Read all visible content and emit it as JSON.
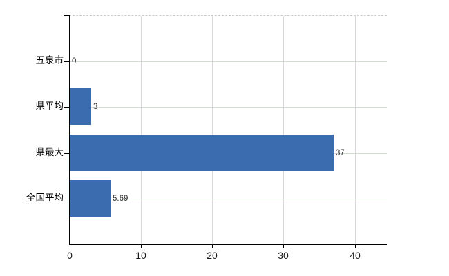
{
  "chart_data": {
    "type": "bar",
    "orientation": "horizontal",
    "title": "",
    "xlabel": "",
    "ylabel": "",
    "categories": [
      "五泉市",
      "県平均",
      "県最大",
      "全国平均"
    ],
    "values": [
      0,
      3,
      37,
      5.69
    ],
    "value_labels": [
      "0",
      "3",
      "37",
      "5.69"
    ],
    "x_ticks": [
      0,
      10,
      20,
      30,
      40
    ],
    "x_tick_labels": [
      "0",
      "10",
      "20",
      "30",
      "40"
    ],
    "xlim": [
      0,
      44.5
    ],
    "grid": true,
    "legend": false,
    "bar_color": "#3c6cb0",
    "hgrid_color": "#d3dcd3",
    "vgrid_color": "#d8d4d8",
    "axis_color": "#000000"
  }
}
